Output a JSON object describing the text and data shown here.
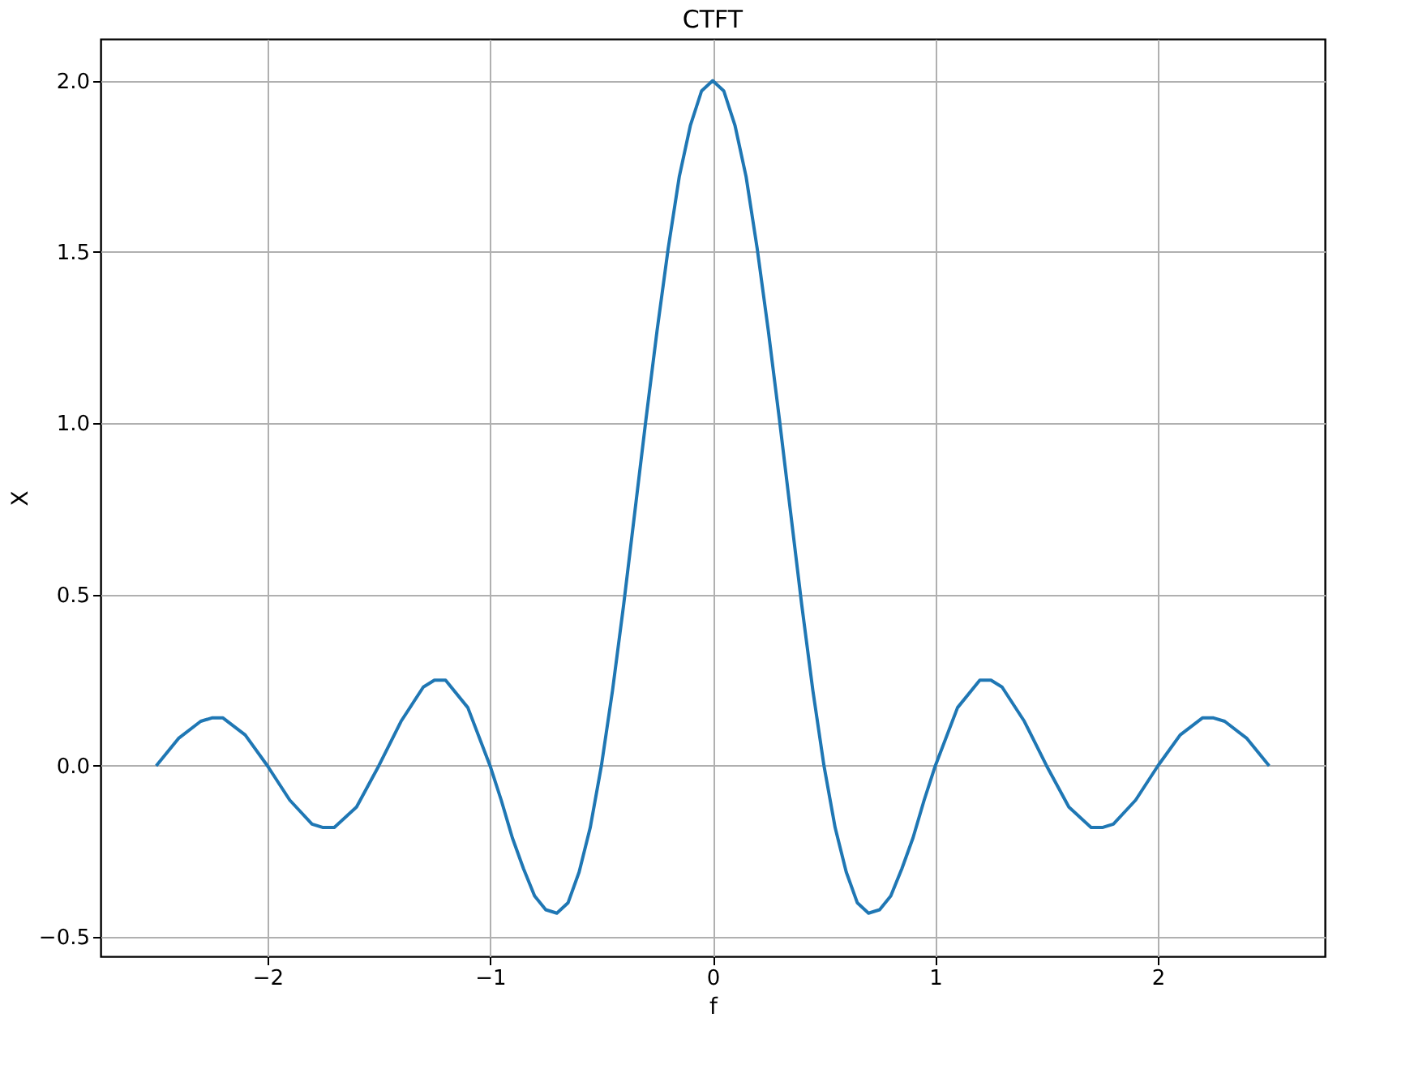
{
  "chart_data": {
    "type": "line",
    "title": "CTFT",
    "xlabel": "f",
    "ylabel": "X",
    "grid": true,
    "xlim": [
      -2.75,
      2.75
    ],
    "ylim": [
      -0.556,
      2.122
    ],
    "xticks": [
      {
        "value": -2,
        "label": "−2"
      },
      {
        "value": -1,
        "label": "−1"
      },
      0,
      1,
      2
    ],
    "yticks": [
      {
        "value": -0.5,
        "label": "−0.5"
      },
      {
        "value": 0,
        "label": "0.0"
      },
      {
        "value": 0.5,
        "label": "0.5"
      },
      {
        "value": 1,
        "label": "1.0"
      },
      {
        "value": 1.5,
        "label": "1.5"
      },
      {
        "value": 2,
        "label": "2.0"
      }
    ],
    "series": [
      {
        "color": "#1f77b4",
        "x": [
          -2.5,
          -2.4,
          -2.3,
          -2.25,
          -2.2,
          -2.1,
          -2.0,
          -1.9,
          -1.8,
          -1.75,
          -1.7,
          -1.6,
          -1.5,
          -1.4,
          -1.3,
          -1.25,
          -1.2,
          -1.1,
          -1.0,
          -0.95,
          -0.9,
          -0.85,
          -0.8,
          -0.75,
          -0.7,
          -0.65,
          -0.6,
          -0.55,
          -0.5,
          -0.45,
          -0.4,
          -0.35,
          -0.3,
          -0.25,
          -0.2,
          -0.15,
          -0.1,
          -0.05,
          0,
          0.05,
          0.1,
          0.15,
          0.2,
          0.25,
          0.3,
          0.35,
          0.4,
          0.45,
          0.5,
          0.55,
          0.6,
          0.65,
          0.7,
          0.75,
          0.8,
          0.85,
          0.9,
          0.95,
          1.0,
          1.1,
          1.2,
          1.25,
          1.3,
          1.4,
          1.5,
          1.6,
          1.7,
          1.75,
          1.8,
          1.9,
          2.0,
          2.1,
          2.2,
          2.25,
          2.3,
          2.4,
          2.5
        ],
        "values": [
          0,
          0.08,
          0.13,
          0.14,
          0.14,
          0.09,
          0,
          -0.1,
          -0.17,
          -0.18,
          -0.18,
          -0.12,
          0,
          0.13,
          0.23,
          0.25,
          0.25,
          0.17,
          0,
          -0.1,
          -0.21,
          -0.3,
          -0.38,
          -0.42,
          -0.43,
          -0.4,
          -0.31,
          -0.18,
          0,
          0.22,
          0.47,
          0.74,
          1.01,
          1.27,
          1.51,
          1.72,
          1.87,
          1.97,
          2,
          1.97,
          1.87,
          1.72,
          1.51,
          1.27,
          1.01,
          0.74,
          0.47,
          0.22,
          0,
          -0.18,
          -0.31,
          -0.4,
          -0.43,
          -0.42,
          -0.38,
          -0.3,
          -0.21,
          -0.1,
          0,
          0.17,
          0.25,
          0.25,
          0.23,
          0.13,
          0,
          -0.12,
          -0.18,
          -0.18,
          -0.17,
          -0.1,
          0,
          0.09,
          0.14,
          0.14,
          0.13,
          0.08,
          0
        ]
      }
    ]
  }
}
